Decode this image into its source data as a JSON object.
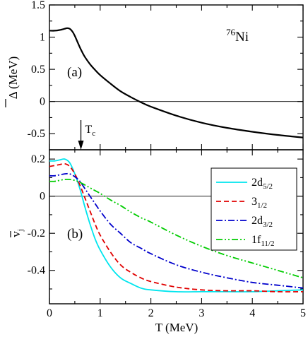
{
  "figure": {
    "nucleus_mass": "76",
    "nucleus_symbol": "Ni",
    "xlabel": "T (MeV)",
    "tc_label": "T",
    "tc_sub": "c",
    "tc_value": 0.62
  },
  "chart_data": [
    {
      "type": "line",
      "panel_label": "(a)",
      "ylabel": "Δ (MeV)",
      "ylabel_bar": true,
      "xlim": [
        0,
        5
      ],
      "ylim": [
        -0.75,
        1.5
      ],
      "xticks": [
        0,
        1,
        2,
        3,
        4,
        5
      ],
      "yticks": [
        -0.5,
        0,
        0.5,
        1,
        1.5
      ],
      "ytick_labels": [
        "-0.5",
        "0",
        "0.5",
        "1",
        "1.5"
      ],
      "reference_line_y": 0,
      "series": [
        {
          "color": "#000000",
          "dash": "",
          "x": [
            0,
            0.1,
            0.2,
            0.3,
            0.35,
            0.4,
            0.45,
            0.5,
            0.55,
            0.6,
            0.65,
            0.7,
            0.8,
            0.9,
            1.0,
            1.2,
            1.4,
            1.6,
            1.8,
            2.0,
            2.5,
            3.0,
            3.5,
            4.0,
            4.5,
            5.0
          ],
          "y": [
            1.1,
            1.1,
            1.11,
            1.13,
            1.14,
            1.13,
            1.09,
            1.02,
            0.93,
            0.84,
            0.76,
            0.69,
            0.58,
            0.49,
            0.41,
            0.28,
            0.16,
            0.07,
            -0.01,
            -0.08,
            -0.22,
            -0.33,
            -0.41,
            -0.47,
            -0.52,
            -0.56
          ]
        }
      ]
    },
    {
      "type": "line",
      "panel_label": "(b)",
      "ylabel": "v",
      "ylabel_sub": "j",
      "ylabel_bar": true,
      "xlim": [
        0,
        5
      ],
      "ylim": [
        -0.58,
        0.25
      ],
      "xticks": [
        0,
        1,
        2,
        3,
        4,
        5
      ],
      "xtick_labels": [
        "0",
        "1",
        "2",
        "3",
        "4",
        "5"
      ],
      "yticks": [
        -0.4,
        -0.2,
        0,
        0.2
      ],
      "ytick_labels": [
        "-0.4",
        "-0.2",
        "0",
        "0.2"
      ],
      "reference_line_y": 0,
      "legend_position": "top-right",
      "series": [
        {
          "name": "2d",
          "sub": "5/2",
          "color": "#00e5ee",
          "dash": "",
          "x": [
            0,
            0.1,
            0.2,
            0.3,
            0.4,
            0.5,
            0.6,
            0.7,
            0.8,
            0.9,
            1.0,
            1.2,
            1.4,
            1.6,
            1.8,
            2.0,
            2.5,
            3.0,
            3.5,
            4.0,
            4.5,
            5.0
          ],
          "y": [
            0.19,
            0.19,
            0.195,
            0.2,
            0.18,
            0.12,
            0.04,
            -0.06,
            -0.15,
            -0.23,
            -0.29,
            -0.38,
            -0.44,
            -0.47,
            -0.495,
            -0.505,
            -0.515,
            -0.515,
            -0.515,
            -0.515,
            -0.51,
            -0.505
          ]
        },
        {
          "name": "3",
          "sub": "1/2",
          "color": "#e00000",
          "dash": "7,4",
          "x": [
            0,
            0.1,
            0.2,
            0.3,
            0.4,
            0.5,
            0.6,
            0.7,
            0.8,
            0.9,
            1.0,
            1.2,
            1.4,
            1.6,
            1.8,
            2.0,
            2.5,
            3.0,
            3.5,
            4.0,
            4.5,
            5.0
          ],
          "y": [
            0.16,
            0.165,
            0.17,
            0.175,
            0.16,
            0.12,
            0.06,
            -0.01,
            -0.08,
            -0.15,
            -0.21,
            -0.3,
            -0.37,
            -0.41,
            -0.44,
            -0.46,
            -0.49,
            -0.505,
            -0.51,
            -0.51,
            -0.515,
            -0.515
          ]
        },
        {
          "name": "2d",
          "sub": "3/2",
          "color": "#0000cc",
          "dash": "9,3,2,3",
          "x": [
            0,
            0.1,
            0.2,
            0.3,
            0.4,
            0.5,
            0.6,
            0.7,
            0.8,
            0.9,
            1.0,
            1.2,
            1.4,
            1.6,
            1.8,
            2.0,
            2.5,
            3.0,
            3.5,
            4.0,
            4.5,
            5.0
          ],
          "y": [
            0.11,
            0.11,
            0.115,
            0.12,
            0.12,
            0.105,
            0.08,
            0.04,
            0.0,
            -0.04,
            -0.08,
            -0.15,
            -0.2,
            -0.25,
            -0.28,
            -0.31,
            -0.37,
            -0.41,
            -0.44,
            -0.465,
            -0.48,
            -0.495
          ]
        },
        {
          "name": "1f",
          "sub": "11/2",
          "color": "#00cc00",
          "dash": "9,3,2,3,2,3",
          "x": [
            0,
            0.1,
            0.2,
            0.3,
            0.4,
            0.5,
            0.6,
            0.7,
            0.8,
            0.9,
            1.0,
            1.2,
            1.4,
            1.6,
            1.8,
            2.0,
            2.5,
            3.0,
            3.5,
            4.0,
            4.5,
            5.0
          ],
          "y": [
            0.08,
            0.08,
            0.085,
            0.09,
            0.09,
            0.085,
            0.075,
            0.06,
            0.045,
            0.03,
            0.015,
            -0.02,
            -0.05,
            -0.085,
            -0.115,
            -0.14,
            -0.21,
            -0.27,
            -0.32,
            -0.36,
            -0.4,
            -0.44
          ]
        }
      ]
    }
  ]
}
